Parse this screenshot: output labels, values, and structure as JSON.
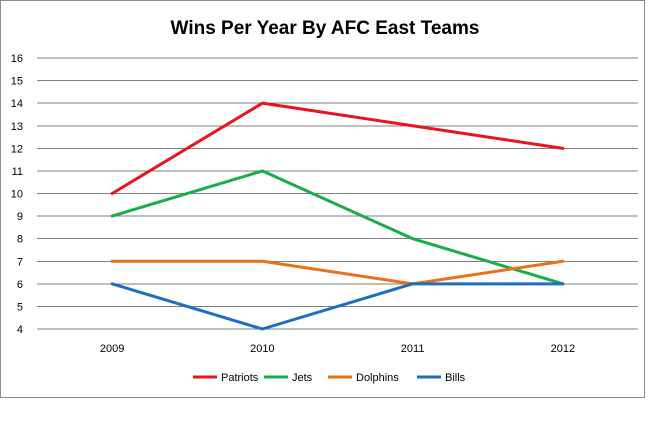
{
  "chart_data": {
    "type": "line",
    "title": "Wins Per Year By AFC East Teams",
    "xlabel": "",
    "ylabel": "",
    "categories": [
      "2009",
      "2010",
      "2011",
      "2012"
    ],
    "ylim": [
      4,
      16
    ],
    "yticks": [
      4,
      5,
      6,
      7,
      8,
      9,
      10,
      11,
      12,
      13,
      14,
      15,
      16
    ],
    "grid": true,
    "legend_position": "bottom",
    "series": [
      {
        "name": "Patriots",
        "values": [
          10,
          14,
          13,
          12
        ],
        "color": "#e8141c"
      },
      {
        "name": "Jets",
        "values": [
          9,
          11,
          8,
          6
        ],
        "color": "#18ad4b"
      },
      {
        "name": "Dolphins",
        "values": [
          7,
          7,
          6,
          7
        ],
        "color": "#e8711c"
      },
      {
        "name": "Bills",
        "values": [
          6,
          4,
          6,
          6
        ],
        "color": "#1e6ec0"
      }
    ]
  }
}
